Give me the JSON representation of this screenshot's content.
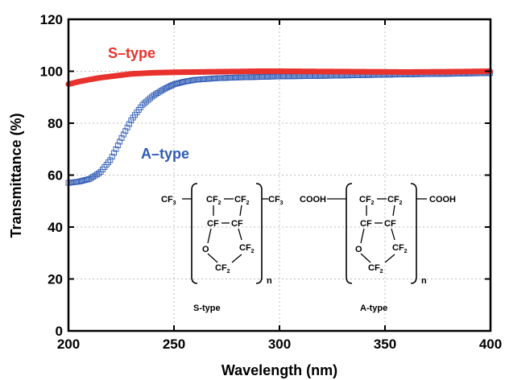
{
  "chart_data": {
    "type": "scatter",
    "xlabel": "Wavelength (nm)",
    "ylabel": "Transmittance (%)",
    "xlim": [
      200,
      400
    ],
    "ylim": [
      0,
      120
    ],
    "xticks": [
      "200",
      "250",
      "300",
      "350",
      "400"
    ],
    "yticks": [
      "0",
      "20",
      "40",
      "60",
      "80",
      "100",
      "120"
    ],
    "grid": true,
    "series": [
      {
        "name": "S–type",
        "color": "#e8322d",
        "marker": "filled-circle",
        "x": [
          200,
          205,
          210,
          215,
          220,
          225,
          230,
          235,
          240,
          250,
          260,
          270,
          280,
          290,
          300,
          320,
          340,
          360,
          380,
          400
        ],
        "y": [
          95,
          96,
          96.8,
          97.5,
          98,
          98.5,
          99,
          99.2,
          99.4,
          99.6,
          99.7,
          99.8,
          99.9,
          100,
          100,
          99.9,
          99.8,
          99.7,
          99.8,
          100
        ]
      },
      {
        "name": "A–type",
        "color": "#2f5bb5",
        "marker": "open-square",
        "x": [
          200,
          205,
          210,
          215,
          220,
          225,
          230,
          235,
          240,
          245,
          250,
          255,
          260,
          270,
          280,
          290,
          300,
          320,
          340,
          360,
          380,
          400
        ],
        "y": [
          57,
          57.5,
          58.5,
          61,
          66,
          74,
          81.5,
          87,
          90.5,
          93,
          95,
          96,
          96.7,
          97.3,
          97.6,
          97.8,
          98,
          98.2,
          98.5,
          98.8,
          99,
          99.3
        ]
      }
    ]
  },
  "structures": [
    {
      "caption": "S-type",
      "end_left": "CF",
      "end_left_sub": "3",
      "end_right": "CF",
      "end_right_sub": "3",
      "top_left": "CF",
      "top_left_sub": "2",
      "top_right": "CF",
      "top_right_sub": "2",
      "mid_left": "CF",
      "mid_right": "CF",
      "oxygen": "O",
      "ring_right": "CF",
      "ring_right_sub": "2",
      "ring_bottom": "CF",
      "ring_bottom_sub": "2",
      "repeat": "n"
    },
    {
      "caption": "A-type",
      "end_left": "COOH",
      "end_left_sub": "",
      "end_right": "COOH",
      "end_right_sub": "",
      "top_left": "CF",
      "top_left_sub": "2",
      "top_right": "CF",
      "top_right_sub": "2",
      "mid_left": "CF",
      "mid_right": "CF",
      "oxygen": "O",
      "ring_right": "CF",
      "ring_right_sub": "2",
      "ring_bottom": "CF",
      "ring_bottom_sub": "2",
      "repeat": "n"
    }
  ]
}
